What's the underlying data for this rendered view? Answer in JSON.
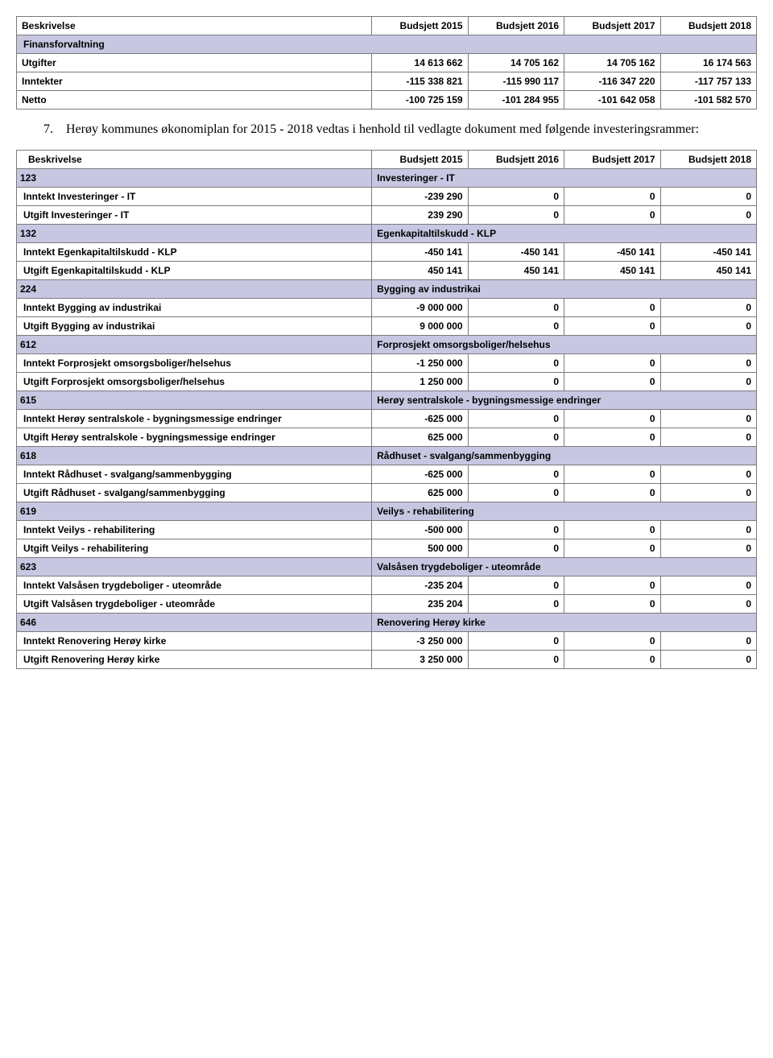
{
  "headers": {
    "beskrivelse": "Beskrivelse",
    "b2015": "Budsjett 2015",
    "b2016": "Budsjett 2016",
    "b2017": "Budsjett 2017",
    "b2018": "Budsjett 2018"
  },
  "table1": {
    "section": "Finansforvaltning",
    "rows": [
      {
        "label": "Utgifter",
        "v": [
          "14 613 662",
          "14 705 162",
          "14 705 162",
          "16 174 563"
        ]
      },
      {
        "label": "Inntekter",
        "v": [
          "-115 338 821",
          "-115 990 117",
          "-116 347 220",
          "-117 757 133"
        ]
      },
      {
        "label": "Netto",
        "v": [
          "-100 725 159",
          "-101 284 955",
          "-101 642 058",
          "-101 582 570"
        ]
      }
    ]
  },
  "para": {
    "num": "7.",
    "text": "Herøy kommunes økonomiplan for 2015 - 2018 vedtas i henhold til vedlagte dokument med følgende investeringsrammer:"
  },
  "table2": {
    "sections": [
      {
        "id": "123",
        "name": "Investeringer - IT",
        "rows": [
          {
            "label": "Inntekt Investeringer - IT",
            "v": [
              "-239 290",
              "0",
              "0",
              "0"
            ]
          },
          {
            "label": "Utgift Investeringer - IT",
            "v": [
              "239 290",
              "0",
              "0",
              "0"
            ]
          }
        ]
      },
      {
        "id": "132",
        "name": "Egenkapitaltilskudd - KLP",
        "rows": [
          {
            "label": "Inntekt Egenkapitaltilskudd - KLP",
            "v": [
              "-450 141",
              "-450 141",
              "-450 141",
              "-450 141"
            ]
          },
          {
            "label": "Utgift Egenkapitaltilskudd - KLP",
            "v": [
              "450 141",
              "450 141",
              "450 141",
              "450 141"
            ]
          }
        ]
      },
      {
        "id": "224",
        "name": "Bygging av industrikai",
        "rows": [
          {
            "label": "Inntekt Bygging av industrikai",
            "v": [
              "-9 000 000",
              "0",
              "0",
              "0"
            ]
          },
          {
            "label": "Utgift Bygging av industrikai",
            "v": [
              "9 000 000",
              "0",
              "0",
              "0"
            ]
          }
        ]
      },
      {
        "id": "612",
        "name": "Forprosjekt omsorgsboliger/helsehus",
        "rows": [
          {
            "label": "Inntekt Forprosjekt omsorgsboliger/helsehus",
            "v": [
              "-1 250 000",
              "0",
              "0",
              "0"
            ]
          },
          {
            "label": "Utgift Forprosjekt omsorgsboliger/helsehus",
            "v": [
              "1 250 000",
              "0",
              "0",
              "0"
            ]
          }
        ]
      },
      {
        "id": "615",
        "name": "Herøy sentralskole - bygningsmessige endringer",
        "rows": [
          {
            "label": "Inntekt Herøy sentralskole - bygningsmessige endringer",
            "v": [
              "-625 000",
              "0",
              "0",
              "0"
            ]
          },
          {
            "label": "Utgift Herøy sentralskole - bygningsmessige endringer",
            "v": [
              "625 000",
              "0",
              "0",
              "0"
            ]
          }
        ]
      },
      {
        "id": "618",
        "name": "Rådhuset - svalgang/sammenbygging",
        "rows": [
          {
            "label": "Inntekt Rådhuset - svalgang/sammenbygging",
            "v": [
              "-625 000",
              "0",
              "0",
              "0"
            ]
          },
          {
            "label": "Utgift Rådhuset - svalgang/sammenbygging",
            "v": [
              "625 000",
              "0",
              "0",
              "0"
            ]
          }
        ]
      },
      {
        "id": "619",
        "name": "Veilys - rehabilitering",
        "rows": [
          {
            "label": "Inntekt Veilys - rehabilitering",
            "v": [
              "-500 000",
              "0",
              "0",
              "0"
            ]
          },
          {
            "label": "Utgift Veilys - rehabilitering",
            "v": [
              "500 000",
              "0",
              "0",
              "0"
            ]
          }
        ]
      },
      {
        "id": "623",
        "name": "Valsåsen trygdeboliger - uteområde",
        "rows": [
          {
            "label": "Inntekt Valsåsen trygdeboliger - uteområde",
            "v": [
              "-235 204",
              "0",
              "0",
              "0"
            ]
          },
          {
            "label": "Utgift Valsåsen trygdeboliger - uteområde",
            "v": [
              "235 204",
              "0",
              "0",
              "0"
            ]
          }
        ]
      },
      {
        "id": "646",
        "name": "Renovering Herøy kirke",
        "rows": [
          {
            "label": "Inntekt Renovering Herøy kirke",
            "v": [
              "-3 250 000",
              "0",
              "0",
              "0"
            ]
          },
          {
            "label": "Utgift Renovering Herøy kirke",
            "v": [
              "3 250 000",
              "0",
              "0",
              "0"
            ]
          }
        ]
      }
    ]
  },
  "colors": {
    "section_bg": "#c8c7e2",
    "border": "#7a7a7a",
    "text": "#000000",
    "page_bg": "#ffffff"
  }
}
